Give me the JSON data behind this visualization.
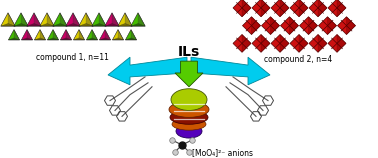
{
  "background_color": "#ffffff",
  "compound1_label": "compound 1, n=11",
  "compound2_label": "compound 2, n=4",
  "ils_label": "ILs",
  "anion_label": "[MoO₄]²⁻ anions",
  "ils_color": "#00ccee",
  "green_arrow_color": "#55cc00",
  "yellow_tet_color": "#ddcc00",
  "green_tet_color": "#44bb00",
  "pink_tet_color": "#cc0066",
  "dark_edge": "#222222",
  "red_oct_color": "#cc1111",
  "dark_red_oct": "#880000",
  "yellow_green_drop": "#aacc00",
  "orange_drop": "#cc5500",
  "dark_red_drop": "#881100",
  "purple_drop": "#5500bb",
  "mol_center": "#111111",
  "mol_outer": "#cccccc"
}
